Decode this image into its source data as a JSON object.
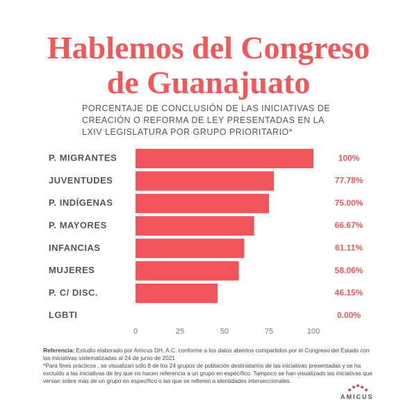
{
  "chart_data": {
    "type": "bar",
    "orientation": "horizontal",
    "title": [
      "Hablemos del Congreso",
      "de Guanajuato"
    ],
    "subtitle": "PORCENTAJE DE CONCLUSIÓN DE LAS  INICIATIVAS DE CREACIÓN O REFORMA DE LEY PRESENTADAS EN LA LXIV LEGISLATURA POR GRUPO PRIORITARIO*",
    "categories": [
      "P. MIGRANTES",
      "JUVENTUDES",
      "P. INDÍGENAS",
      "P. MAYORES",
      "INFANCIAS",
      "MUJERES",
      "P. C/ DISC.",
      "LGBTI"
    ],
    "values": [
      100,
      77.78,
      75.0,
      66.67,
      61.11,
      58.06,
      46.15,
      0.0
    ],
    "value_labels": [
      "100%",
      "77.78%",
      "75.00%",
      "66.67%",
      "61.11%",
      "58.06%",
      "46.15%",
      "0.00%"
    ],
    "color": "#f2545b",
    "xlim": [
      0,
      100
    ],
    "xticks": [
      0,
      25,
      50,
      75,
      100
    ],
    "grid": false
  },
  "footer": {
    "reference_label": "Referencia:",
    "reference_text": "Estudio elaborado por Amicus DH, A.C. conforme a los datos abiertos compartidos por el Congreso del Estado con las iniciativas sistematizadas al 24 de junio de 2021",
    "note": "*Para fines prácticos , se visualizan sólo 8 de los 24 grupos de población destinatarios de las iniciativas presentadas y se ha excluido a las iniciativas de ley que no hacen referencia a un grupo en específico. Tampoco se han visualizado las iniciativas que versan sobre más de un grupo en específico o las que se refieren a identidades interseccionales.",
    "logo": "AMICUS"
  }
}
